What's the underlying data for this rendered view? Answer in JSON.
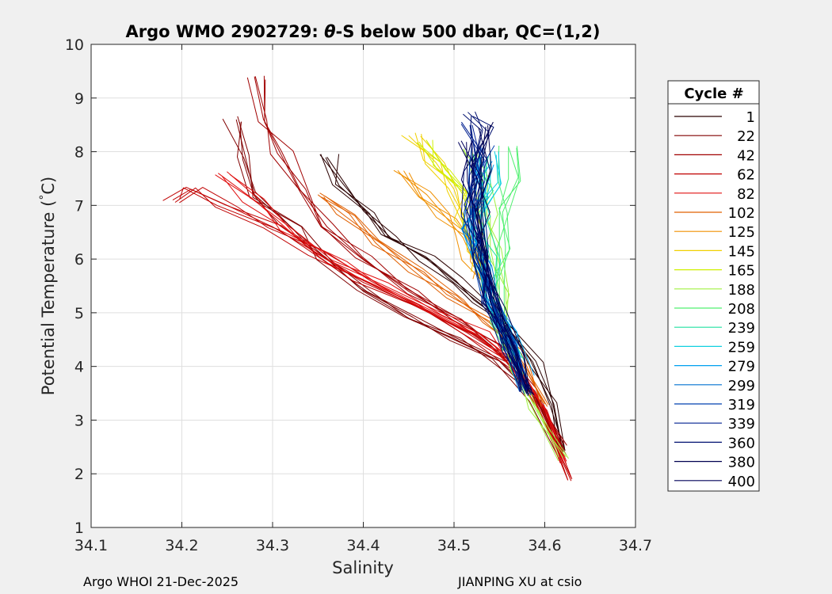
{
  "chart_data": {
    "type": "line",
    "title_parts": [
      "Argo WMO 2902729: ",
      "θ",
      "-S below 500 dbar,  QC=(1,2)"
    ],
    "xlabel": "Salinity",
    "ylabel": "Potential Temperature (",
    "ylabel_unit_deg": "°",
    "ylabel_unit_c": "C)",
    "xlim": [
      34.1,
      34.7
    ],
    "ylim": [
      1,
      10
    ],
    "x_ticks": [
      "34.1",
      "34.2",
      "34.3",
      "34.4",
      "34.5",
      "34.6",
      "34.7"
    ],
    "y_ticks": [
      "1",
      "2",
      "3",
      "4",
      "5",
      "6",
      "7",
      "8",
      "9",
      "10"
    ],
    "grid": true,
    "legend": {
      "title": "Cycle #",
      "placement": "right",
      "entries": [
        {
          "label": "1",
          "color": "#2a0000"
        },
        {
          "label": "22",
          "color": "#800000"
        },
        {
          "label": "42",
          "color": "#a00000"
        },
        {
          "label": "62",
          "color": "#c00000"
        },
        {
          "label": "82",
          "color": "#e01010"
        },
        {
          "label": "102",
          "color": "#e06000"
        },
        {
          "label": "125",
          "color": "#f09000"
        },
        {
          "label": "145",
          "color": "#f0d000"
        },
        {
          "label": "165",
          "color": "#d0f000"
        },
        {
          "label": "188",
          "color": "#a0f040"
        },
        {
          "label": "208",
          "color": "#50f070"
        },
        {
          "label": "239",
          "color": "#20e0a0"
        },
        {
          "label": "259",
          "color": "#10d0e0"
        },
        {
          "label": "279",
          "color": "#00a0f0"
        },
        {
          "label": "299",
          "color": "#0070d0"
        },
        {
          "label": "319",
          "color": "#0040b0"
        },
        {
          "label": "339",
          "color": "#002090"
        },
        {
          "label": "360",
          "color": "#001070"
        },
        {
          "label": "380",
          "color": "#000050"
        },
        {
          "label": "400",
          "color": "#00005a"
        }
      ]
    },
    "series": [
      {
        "cycle": "1",
        "color": "#2a0000",
        "points": [
          [
            34.36,
            7.9
          ],
          [
            34.38,
            7.4
          ],
          [
            34.4,
            6.9
          ],
          [
            34.43,
            6.4
          ],
          [
            34.47,
            6.0
          ],
          [
            34.5,
            5.6
          ],
          [
            34.53,
            5.2
          ],
          [
            34.56,
            4.7
          ],
          [
            34.59,
            4.1
          ],
          [
            34.61,
            3.3
          ],
          [
            34.62,
            2.4
          ]
        ]
      },
      {
        "cycle": "22",
        "color": "#800000",
        "points": [
          [
            34.26,
            8.6
          ],
          [
            34.27,
            7.9
          ],
          [
            34.28,
            7.2
          ],
          [
            34.32,
            6.6
          ],
          [
            34.36,
            6.0
          ],
          [
            34.4,
            5.4
          ],
          [
            34.45,
            4.9
          ],
          [
            34.5,
            4.5
          ],
          [
            34.55,
            4.1
          ],
          [
            34.59,
            3.4
          ],
          [
            34.62,
            2.3
          ]
        ]
      },
      {
        "cycle": "42",
        "color": "#a00000",
        "points": [
          [
            34.28,
            9.4
          ],
          [
            34.29,
            8.6
          ],
          [
            34.31,
            8.0
          ],
          [
            34.33,
            7.3
          ],
          [
            34.36,
            6.6
          ],
          [
            34.4,
            6.0
          ],
          [
            34.45,
            5.4
          ],
          [
            34.5,
            4.9
          ],
          [
            34.55,
            4.4
          ],
          [
            34.59,
            3.6
          ],
          [
            34.62,
            2.5
          ]
        ]
      },
      {
        "cycle": "62",
        "color": "#c00000",
        "points": [
          [
            34.19,
            7.1
          ],
          [
            34.21,
            7.3
          ],
          [
            34.25,
            7.0
          ],
          [
            34.3,
            6.6
          ],
          [
            34.35,
            6.1
          ],
          [
            34.4,
            5.6
          ],
          [
            34.46,
            5.1
          ],
          [
            34.52,
            4.6
          ],
          [
            34.57,
            4.0
          ],
          [
            34.6,
            3.2
          ],
          [
            34.63,
            1.9
          ]
        ]
      },
      {
        "cycle": "82",
        "color": "#e01010",
        "points": [
          [
            34.24,
            7.6
          ],
          [
            34.28,
            7.1
          ],
          [
            34.32,
            6.5
          ],
          [
            34.37,
            6.0
          ],
          [
            34.42,
            5.5
          ],
          [
            34.48,
            5.0
          ],
          [
            34.53,
            4.6
          ],
          [
            34.57,
            4.0
          ],
          [
            34.6,
            3.2
          ],
          [
            34.62,
            2.2
          ]
        ]
      },
      {
        "cycle": "102",
        "color": "#e06000",
        "points": [
          [
            34.35,
            7.2
          ],
          [
            34.38,
            6.8
          ],
          [
            34.42,
            6.3
          ],
          [
            34.46,
            5.8
          ],
          [
            34.5,
            5.3
          ],
          [
            34.54,
            4.8
          ],
          [
            34.57,
            4.2
          ],
          [
            34.6,
            3.3
          ]
        ]
      },
      {
        "cycle": "125",
        "color": "#f09000",
        "points": [
          [
            34.44,
            7.6
          ],
          [
            34.47,
            7.2
          ],
          [
            34.49,
            6.8
          ],
          [
            34.51,
            6.4
          ],
          [
            34.52,
            6.0
          ],
          [
            34.53,
            5.6
          ]
        ]
      },
      {
        "cycle": "145",
        "color": "#f0d000",
        "points": [
          [
            34.45,
            8.3
          ],
          [
            34.48,
            7.8
          ],
          [
            34.5,
            7.3
          ],
          [
            34.51,
            6.8
          ],
          [
            34.52,
            6.2
          ],
          [
            34.53,
            5.8
          ]
        ]
      },
      {
        "cycle": "165",
        "color": "#d0f000",
        "points": [
          [
            34.47,
            8.2
          ],
          [
            34.49,
            7.7
          ],
          [
            34.51,
            7.2
          ],
          [
            34.52,
            6.6
          ],
          [
            34.53,
            6.0
          ],
          [
            34.54,
            5.4
          ]
        ]
      },
      {
        "cycle": "188",
        "color": "#a0f040",
        "points": [
          [
            34.52,
            8.0
          ],
          [
            34.53,
            7.4
          ],
          [
            34.54,
            6.8
          ],
          [
            34.54,
            6.2
          ],
          [
            34.55,
            5.4
          ],
          [
            34.55,
            4.6
          ],
          [
            34.57,
            3.9
          ],
          [
            34.59,
            3.2
          ],
          [
            34.62,
            2.3
          ]
        ]
      },
      {
        "cycle": "208",
        "color": "#50f070",
        "points": [
          [
            34.56,
            8.1
          ],
          [
            34.56,
            7.5
          ],
          [
            34.55,
            6.9
          ],
          [
            34.55,
            6.2
          ],
          [
            34.55,
            5.5
          ],
          [
            34.55,
            4.8
          ],
          [
            34.56,
            4.3
          ]
        ]
      },
      {
        "cycle": "239",
        "color": "#20e0a0",
        "points": [
          [
            34.53,
            7.9
          ],
          [
            34.53,
            7.3
          ],
          [
            34.53,
            6.7
          ],
          [
            34.54,
            6.0
          ],
          [
            34.54,
            5.3
          ],
          [
            34.55,
            4.7
          ],
          [
            34.57,
            4.1
          ]
        ]
      },
      {
        "cycle": "259",
        "color": "#10d0e0",
        "points": [
          [
            34.54,
            8.0
          ],
          [
            34.54,
            7.4
          ],
          [
            34.53,
            6.8
          ],
          [
            34.53,
            6.1
          ],
          [
            34.54,
            5.4
          ],
          [
            34.55,
            4.8
          ],
          [
            34.57,
            4.2
          ]
        ]
      },
      {
        "cycle": "279",
        "color": "#00a0f0",
        "points": [
          [
            34.53,
            7.8
          ],
          [
            34.53,
            7.2
          ],
          [
            34.52,
            6.6
          ],
          [
            34.53,
            6.0
          ],
          [
            34.54,
            5.3
          ],
          [
            34.56,
            4.6
          ],
          [
            34.58,
            3.8
          ]
        ]
      },
      {
        "cycle": "299",
        "color": "#0070d0",
        "points": [
          [
            34.52,
            7.9
          ],
          [
            34.52,
            7.2
          ],
          [
            34.52,
            6.6
          ],
          [
            34.53,
            5.9
          ],
          [
            34.54,
            5.2
          ],
          [
            34.56,
            4.5
          ],
          [
            34.58,
            3.6
          ]
        ]
      },
      {
        "cycle": "319",
        "color": "#0040b0",
        "points": [
          [
            34.53,
            8.1
          ],
          [
            34.52,
            7.4
          ],
          [
            34.52,
            6.8
          ],
          [
            34.53,
            6.0
          ],
          [
            34.54,
            5.2
          ],
          [
            34.56,
            4.4
          ],
          [
            34.58,
            3.5
          ]
        ]
      },
      {
        "cycle": "339",
        "color": "#002090",
        "points": [
          [
            34.52,
            8.5
          ],
          [
            34.53,
            7.8
          ],
          [
            34.52,
            7.0
          ],
          [
            34.53,
            6.2
          ],
          [
            34.54,
            5.3
          ],
          [
            34.56,
            4.4
          ],
          [
            34.58,
            3.5
          ]
        ]
      },
      {
        "cycle": "360",
        "color": "#001070",
        "points": [
          [
            34.51,
            8.7
          ],
          [
            34.53,
            8.4
          ],
          [
            34.52,
            7.6
          ],
          [
            34.52,
            6.8
          ],
          [
            34.53,
            6.0
          ],
          [
            34.54,
            5.2
          ],
          [
            34.56,
            4.3
          ],
          [
            34.58,
            3.5
          ]
        ]
      },
      {
        "cycle": "380",
        "color": "#000050",
        "points": [
          [
            34.54,
            8.5
          ],
          [
            34.53,
            7.7
          ],
          [
            34.53,
            6.9
          ],
          [
            34.53,
            6.0
          ],
          [
            34.55,
            5.1
          ],
          [
            34.57,
            4.2
          ],
          [
            34.58,
            3.5
          ]
        ]
      },
      {
        "cycle": "400",
        "color": "#00005a",
        "points": [
          [
            34.52,
            8.2
          ],
          [
            34.52,
            7.5
          ],
          [
            34.52,
            6.8
          ],
          [
            34.53,
            6.0
          ],
          [
            34.54,
            5.2
          ],
          [
            34.56,
            4.4
          ],
          [
            34.58,
            3.6
          ]
        ]
      }
    ]
  },
  "footer": {
    "left": "Argo WHOI 21-Dec-2025",
    "right": "JIANPING XU at csio"
  }
}
